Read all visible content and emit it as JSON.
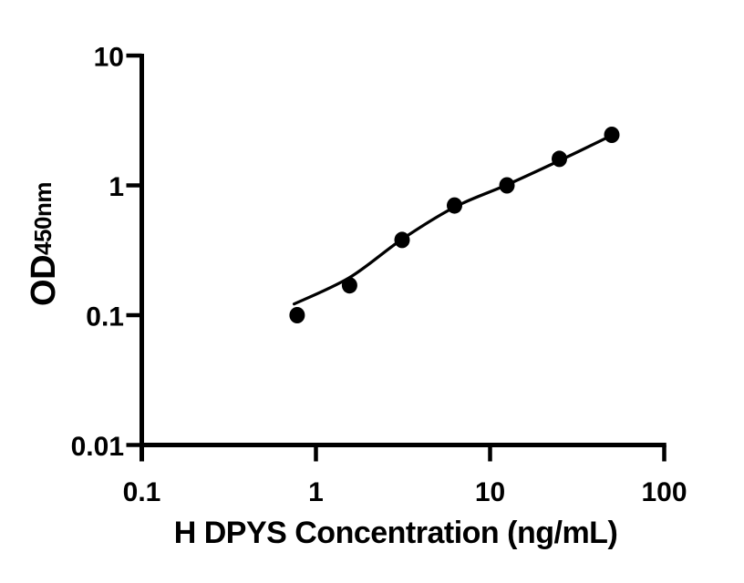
{
  "figure": {
    "background": "#ffffff",
    "ink_color": "#000000"
  },
  "chart_data": {
    "type": "scatter",
    "title": "",
    "xlabel": "H DPYS Concentration (ng/mL)",
    "ylabel_main": "OD",
    "ylabel_sub": "450nm",
    "x_scale": "log10",
    "y_scale": "log10",
    "xlim": [
      0.1,
      100
    ],
    "ylim": [
      0.01,
      10
    ],
    "grid": false,
    "legend_position": "none",
    "x_ticks": [
      {
        "value": 0.1,
        "label": "0.1"
      },
      {
        "value": 1,
        "label": "1"
      },
      {
        "value": 10,
        "label": "10"
      },
      {
        "value": 100,
        "label": "100"
      }
    ],
    "y_ticks": [
      {
        "value": 0.01,
        "label": "0.01"
      },
      {
        "value": 0.1,
        "label": "0.1"
      },
      {
        "value": 1,
        "label": "1"
      },
      {
        "value": 10,
        "label": "10"
      }
    ],
    "series": [
      {
        "name": "standard_points",
        "kind": "scatter",
        "marker": "black-filled-circle",
        "points": [
          {
            "x": 0.78,
            "y": 0.1
          },
          {
            "x": 1.56,
            "y": 0.17
          },
          {
            "x": 3.125,
            "y": 0.38
          },
          {
            "x": 6.25,
            "y": 0.7
          },
          {
            "x": 12.5,
            "y": 1.0
          },
          {
            "x": 25,
            "y": 1.6
          },
          {
            "x": 50,
            "y": 2.45
          }
        ]
      },
      {
        "name": "fit_curve",
        "kind": "line",
        "points": [
          {
            "x": 0.75,
            "y": 0.122
          },
          {
            "x": 1.56,
            "y": 0.195
          },
          {
            "x": 3.125,
            "y": 0.385
          },
          {
            "x": 6.25,
            "y": 0.68
          },
          {
            "x": 12.5,
            "y": 1.01
          },
          {
            "x": 25,
            "y": 1.55
          },
          {
            "x": 50,
            "y": 2.43
          }
        ]
      }
    ]
  }
}
